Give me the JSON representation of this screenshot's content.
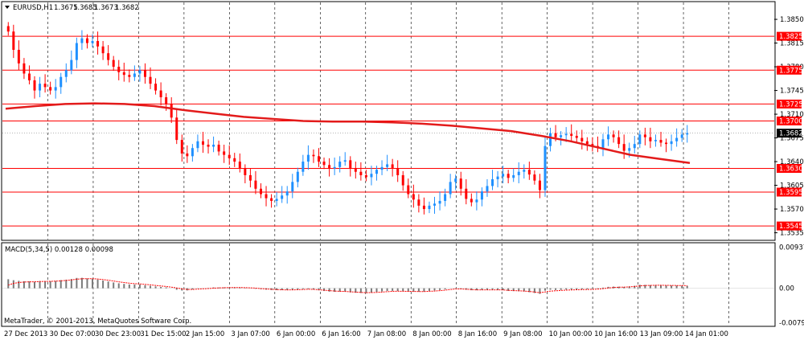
{
  "chart_data": [
    {
      "type": "candlestick",
      "symbol_header": "EURUSD,H1",
      "ohlc_header": [
        "1.3675",
        "1.3685",
        "1.3673",
        "1.3682"
      ],
      "current_price": 1.3682,
      "ylim": [
        1.3525,
        1.3875
      ],
      "y_ticks": [
        {
          "value": 1.385,
          "label": "1.3850"
        },
        {
          "value": 1.3815,
          "label": "1.3815"
        },
        {
          "value": 1.378,
          "label": "1.3780"
        },
        {
          "value": 1.3745,
          "label": "1.3745"
        },
        {
          "value": 1.371,
          "label": "1.3710"
        },
        {
          "value": 1.3675,
          "label": "1.3675"
        },
        {
          "value": 1.364,
          "label": "1.3640"
        },
        {
          "value": 1.3605,
          "label": "1.3605"
        },
        {
          "value": 1.357,
          "label": "1.3570"
        },
        {
          "value": 1.3535,
          "label": "1.3535"
        }
      ],
      "horizontal_levels": [
        {
          "value": 1.3825,
          "label": "1.3825"
        },
        {
          "value": 1.3775,
          "label": "1.3775"
        },
        {
          "value": 1.3725,
          "label": "1.3725"
        },
        {
          "value": 1.37,
          "label": "1.3700"
        },
        {
          "value": 1.363,
          "label": "1.3630"
        },
        {
          "value": 1.3595,
          "label": "1.3595"
        },
        {
          "value": 1.3545,
          "label": "1.3545"
        }
      ],
      "x_tick_labels": [
        "27 Dec 2013",
        "30 Dec 07:00",
        "30 Dec 23:00",
        "31 Dec 15:00",
        "2 Jan 15:00",
        "3 Jan 07:00",
        "6 Jan 00:00",
        "6 Jan 16:00",
        "7 Jan 08:00",
        "8 Jan 00:00",
        "8 Jan 16:00",
        "9 Jan 08:00",
        "10 Jan 00:00",
        "10 Jan 16:00",
        "13 Jan 09:00",
        "14 Jan 01:00"
      ],
      "candle_count": 170,
      "candle_closes_approx": [
        1.3832,
        1.3805,
        1.3785,
        1.377,
        1.376,
        1.3745,
        1.3755,
        1.375,
        1.3745,
        1.375,
        1.3765,
        1.3775,
        1.379,
        1.3815,
        1.3822,
        1.3815,
        1.3818,
        1.381,
        1.38,
        1.379,
        1.378,
        1.3772,
        1.3768,
        1.3765,
        1.377,
        1.3775,
        1.3765,
        1.3755,
        1.3745,
        1.3735,
        1.3725,
        1.3705,
        1.3672,
        1.3652,
        1.3648,
        1.366,
        1.367,
        1.3665,
        1.3662,
        1.3665,
        1.3655,
        1.365,
        1.3645,
        1.364,
        1.363,
        1.362,
        1.3612,
        1.36,
        1.3592,
        1.3586,
        1.3582,
        1.3585,
        1.359,
        1.3596,
        1.361,
        1.3625,
        1.364,
        1.365,
        1.3648,
        1.364,
        1.3635,
        1.363,
        1.3632,
        1.364,
        1.3642,
        1.363,
        1.3625,
        1.362,
        1.3617,
        1.3622,
        1.3628,
        1.3632,
        1.3636,
        1.363,
        1.362,
        1.3605,
        1.3592,
        1.3584,
        1.3575,
        1.357,
        1.3575,
        1.3578,
        1.3582,
        1.3592,
        1.361,
        1.3615,
        1.36,
        1.3585,
        1.358,
        1.3584,
        1.3596,
        1.3604,
        1.3614,
        1.3618,
        1.3622,
        1.3616,
        1.362,
        1.3625,
        1.3628,
        1.3621,
        1.3612,
        1.3598,
        1.3663,
        1.3682,
        1.3676,
        1.3679,
        1.3681,
        1.3678,
        1.3675,
        1.367,
        1.3666,
        1.3663,
        1.366,
        1.3673,
        1.368,
        1.3676,
        1.3666,
        1.3656,
        1.366,
        1.3666,
        1.368,
        1.3676,
        1.367,
        1.3672,
        1.3668,
        1.3666,
        1.367,
        1.3675,
        1.368,
        1.3682
      ]
    },
    {
      "type": "line",
      "name": "moving-average-overlay",
      "approx_values": [
        1.3718,
        1.3722,
        1.3725,
        1.3726,
        1.3725,
        1.3722,
        1.3716,
        1.3711,
        1.3706,
        1.3703,
        1.37,
        1.3699,
        1.3699,
        1.3698,
        1.3696,
        1.3693,
        1.3689,
        1.3685,
        1.3678,
        1.367,
        1.366,
        1.365,
        1.3644,
        1.3638
      ]
    },
    {
      "type": "bar",
      "title": "MACD(5,34,5) 0.00128 0.00098",
      "ylim": [
        -0.0085,
        0.0102
      ],
      "y_ticks": [
        {
          "value": 0.00937,
          "label": "0.00937"
        },
        {
          "value": 0.0,
          "label": "0.00"
        },
        {
          "value": -0.0079,
          "label": "-0.0079"
        }
      ],
      "histogram_count": 170,
      "signal_line_color": "#ff0000",
      "histogram_color": "#a0a0a0"
    }
  ],
  "watermark": "MetaTrader, © 2001-2013, MetaQuotes Software Corp.",
  "colors": {
    "background": "#ffffff",
    "grid": "#000000",
    "bull_candle": "#1e90ff",
    "bear_candle": "#ff0000",
    "level_line": "#ff0000",
    "ma_line": "#e31b1b",
    "label_box_red": "#ff0000",
    "current_price_box": "#000000"
  }
}
